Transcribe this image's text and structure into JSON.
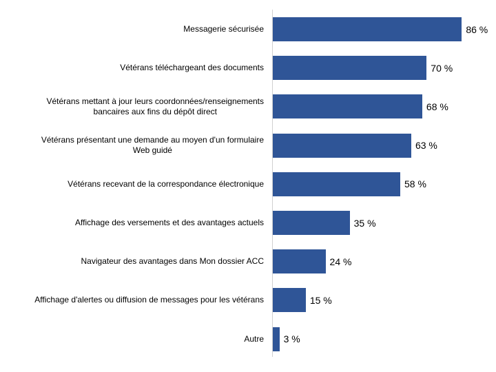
{
  "chart_data": {
    "type": "bar",
    "orientation": "horizontal",
    "title": "",
    "xlabel": "",
    "ylabel": "",
    "grid": false,
    "legend": null,
    "bar_color": "#2f5597",
    "xlim": [
      0,
      100
    ],
    "categories": [
      "Messagerie sécurisée",
      "Vétérans téléchargeant des documents",
      "Vétérans mettant à jour leurs coordonnées/renseignements bancaires aux fins du dépôt direct",
      "Vétérans présentant une demande au moyen d'un formulaire Web guidé",
      "Vétérans recevant de la correspondance électronique",
      "Affichage des versements et des avantages actuels",
      "Navigateur des avantages dans Mon dossier ACC",
      "Affichage d'alertes ou diffusion de messages pour les vétérans",
      "Autre"
    ],
    "values": [
      86,
      70,
      68,
      63,
      58,
      35,
      24,
      15,
      3
    ],
    "value_labels": [
      "86 %",
      "70 %",
      "68 %",
      "63 %",
      "58 %",
      "35 %",
      "24 %",
      "15 %",
      "3 %"
    ]
  },
  "rows": [
    {
      "label_lines": [
        "Messagerie sécurisée"
      ],
      "value": "86 %"
    },
    {
      "label_lines": [
        "Vétérans téléchargeant des documents"
      ],
      "value": "70 %"
    },
    {
      "label_lines": [
        "Vétérans mettant à jour leurs coordonnées/renseignements",
        "bancaires aux fins du dépôt direct"
      ],
      "value": "68 %"
    },
    {
      "label_lines": [
        "Vétérans présentant une demande au moyen d'un formulaire",
        "Web guidé"
      ],
      "value": "63 %"
    },
    {
      "label_lines": [
        "Vétérans recevant de la correspondance électronique"
      ],
      "value": "58 %"
    },
    {
      "label_lines": [
        "Affichage des versements et des avantages actuels"
      ],
      "value": "35 %"
    },
    {
      "label_lines": [
        "Navigateur des avantages dans Mon dossier ACC"
      ],
      "value": "24 %"
    },
    {
      "label_lines": [
        "Affichage d'alertes ou diffusion de messages pour les vétérans"
      ],
      "value": "15 %"
    },
    {
      "label_lines": [
        "Autre"
      ],
      "value": "3 %"
    }
  ]
}
